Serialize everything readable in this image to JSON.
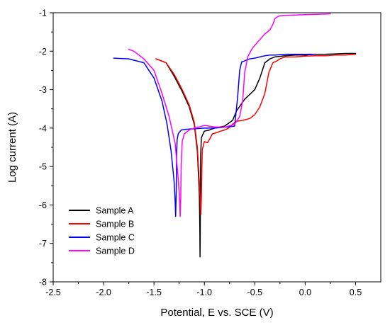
{
  "chart_data": {
    "type": "line",
    "xlabel": "Potential, E vs. SCE (V)",
    "ylabel": "Log current (A)",
    "xlim": [
      -2.5,
      0.75
    ],
    "ylim": [
      -8,
      -1
    ],
    "xticks": [
      "-2.5",
      "-2.0",
      "-1.5",
      "-1.0",
      "-0.5",
      "0.0",
      "0.5"
    ],
    "yticks": [
      "-1",
      "-2",
      "-3",
      "-4",
      "-5",
      "-6",
      "-7",
      "-8"
    ],
    "legend_position": "bottom-left",
    "series": [
      {
        "name": "Sample A",
        "color": "#000000",
        "x": [
          -1.48,
          -1.38,
          -1.3,
          -1.22,
          -1.15,
          -1.1,
          -1.07,
          -1.05,
          -1.045,
          -1.043,
          -1.041,
          -1.039,
          -1.037,
          -1.03,
          -1.0,
          -0.95,
          -0.9,
          -0.8,
          -0.72,
          -0.68,
          -0.6,
          -0.5,
          -0.45,
          -0.4,
          -0.35,
          -0.3,
          -0.2,
          -0.1,
          0.0,
          0.1,
          0.2,
          0.3,
          0.4,
          0.5
        ],
        "y": [
          -2.2,
          -2.3,
          -2.65,
          -3.05,
          -3.45,
          -3.9,
          -4.6,
          -5.7,
          -6.6,
          -7.35,
          -6.7,
          -5.5,
          -4.7,
          -4.25,
          -4.08,
          -4.05,
          -4.0,
          -3.95,
          -3.8,
          -3.55,
          -3.25,
          -3.0,
          -2.7,
          -2.3,
          -2.2,
          -2.15,
          -2.12,
          -2.1,
          -2.1,
          -2.08,
          -2.08,
          -2.07,
          -2.06,
          -2.06
        ]
      },
      {
        "name": "Sample B",
        "color": "#ff0000",
        "x": [
          -1.48,
          -1.38,
          -1.3,
          -1.22,
          -1.15,
          -1.1,
          -1.07,
          -1.05,
          -1.04,
          -1.035,
          -1.03,
          -1.025,
          -1.02,
          -1.0,
          -0.97,
          -0.95,
          -0.92,
          -0.88,
          -0.84,
          -0.8,
          -0.76,
          -0.72,
          -0.68,
          -0.62,
          -0.55,
          -0.5,
          -0.45,
          -0.4,
          -0.36,
          -0.32,
          -0.28,
          -0.25,
          -0.2,
          -0.1,
          0.0,
          0.1,
          0.2,
          0.3,
          0.4,
          0.5
        ],
        "y": [
          -2.2,
          -2.3,
          -2.6,
          -3.0,
          -3.4,
          -3.85,
          -4.5,
          -5.4,
          -5.9,
          -6.25,
          -5.8,
          -5.0,
          -4.55,
          -4.35,
          -4.38,
          -4.3,
          -4.15,
          -4.12,
          -4.08,
          -4.05,
          -4.0,
          -3.9,
          -3.82,
          -3.8,
          -3.75,
          -3.65,
          -3.45,
          -3.1,
          -2.55,
          -2.3,
          -2.25,
          -2.2,
          -2.15,
          -2.15,
          -2.13,
          -2.12,
          -2.12,
          -2.1,
          -2.1,
          -2.08
        ]
      },
      {
        "name": "Sample C",
        "color": "#0000ff",
        "x": [
          -1.9,
          -1.75,
          -1.6,
          -1.5,
          -1.42,
          -1.37,
          -1.33,
          -1.3,
          -1.29,
          -1.285,
          -1.28,
          -1.275,
          -1.27,
          -1.26,
          -1.23,
          -1.18,
          -1.1,
          -1.0,
          -0.9,
          -0.8,
          -0.7,
          -0.67,
          -0.65,
          -0.63,
          -0.6,
          -0.55,
          -0.5,
          -0.45,
          -0.4,
          -0.35,
          -0.3,
          -0.2,
          -0.1,
          0.0,
          0.1
        ],
        "y": [
          -2.18,
          -2.2,
          -2.3,
          -2.7,
          -3.3,
          -3.9,
          -4.6,
          -5.4,
          -5.9,
          -6.3,
          -5.8,
          -4.7,
          -4.3,
          -4.15,
          -4.05,
          -4.03,
          -4.02,
          -4.0,
          -4.0,
          -3.98,
          -3.95,
          -3.2,
          -2.5,
          -2.28,
          -2.25,
          -2.2,
          -2.18,
          -2.15,
          -2.12,
          -2.1,
          -2.1,
          -2.08,
          -2.08,
          -2.08,
          -2.08
        ]
      },
      {
        "name": "Sample D",
        "color": "#ff00ff",
        "x": [
          -1.75,
          -1.7,
          -1.6,
          -1.5,
          -1.42,
          -1.35,
          -1.29,
          -1.26,
          -1.245,
          -1.24,
          -1.235,
          -1.23,
          -1.22,
          -1.2,
          -1.15,
          -1.1,
          -1.05,
          -1.0,
          -0.95,
          -0.9,
          -0.8,
          -0.7,
          -0.65,
          -0.62,
          -0.6,
          -0.57,
          -0.53,
          -0.5,
          -0.45,
          -0.4,
          -0.35,
          -0.32,
          -0.3,
          -0.27,
          -0.25,
          -0.2,
          -0.1,
          0.0,
          0.1,
          0.25
        ],
        "y": [
          -1.95,
          -2.0,
          -2.2,
          -2.5,
          -3.1,
          -3.7,
          -4.4,
          -5.3,
          -5.9,
          -6.3,
          -5.9,
          -5.0,
          -4.35,
          -4.15,
          -4.05,
          -4.0,
          -3.97,
          -3.93,
          -3.95,
          -3.97,
          -3.98,
          -3.9,
          -3.7,
          -3.3,
          -2.55,
          -2.15,
          -1.95,
          -1.85,
          -1.7,
          -1.55,
          -1.45,
          -1.3,
          -1.15,
          -1.1,
          -1.08,
          -1.07,
          -1.06,
          -1.05,
          -1.04,
          -1.03
        ]
      }
    ]
  }
}
